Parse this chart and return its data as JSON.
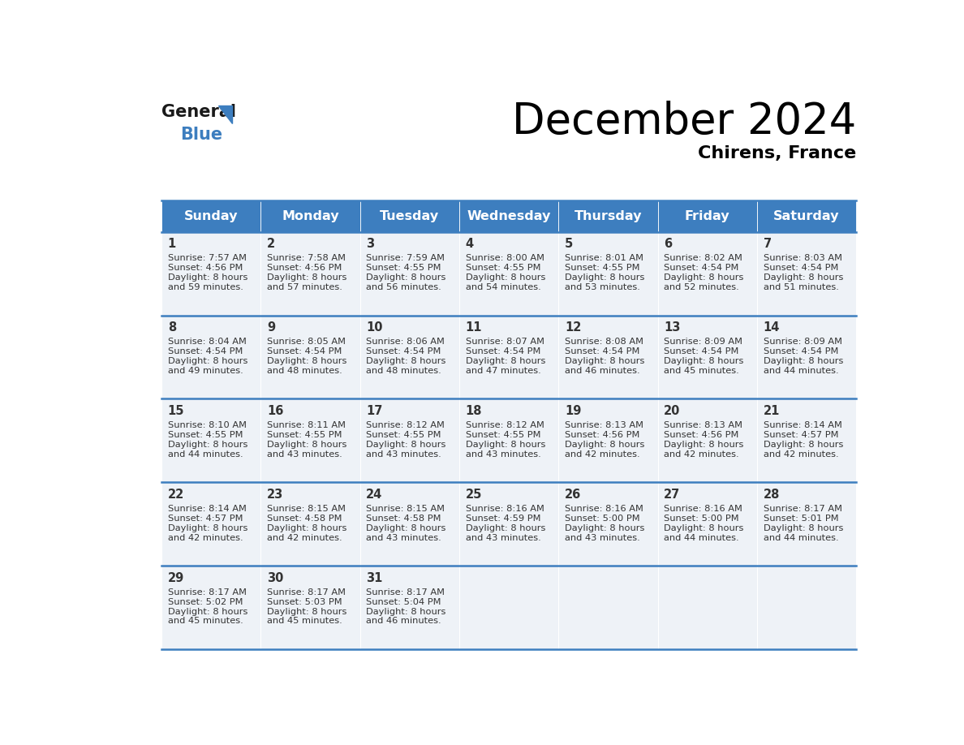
{
  "title": "December 2024",
  "subtitle": "Chirens, France",
  "header_color": "#3d7ebf",
  "header_text_color": "#ffffff",
  "cell_bg_color": "#eef2f7",
  "line_color": "#3d7ebf",
  "text_color": "#333333",
  "days_of_week": [
    "Sunday",
    "Monday",
    "Tuesday",
    "Wednesday",
    "Thursday",
    "Friday",
    "Saturday"
  ],
  "calendar_data": [
    [
      {
        "day": 1,
        "sunrise": "7:57 AM",
        "sunset": "4:56 PM",
        "daylight": "8 hours and 59 minutes."
      },
      {
        "day": 2,
        "sunrise": "7:58 AM",
        "sunset": "4:56 PM",
        "daylight": "8 hours and 57 minutes."
      },
      {
        "day": 3,
        "sunrise": "7:59 AM",
        "sunset": "4:55 PM",
        "daylight": "8 hours and 56 minutes."
      },
      {
        "day": 4,
        "sunrise": "8:00 AM",
        "sunset": "4:55 PM",
        "daylight": "8 hours and 54 minutes."
      },
      {
        "day": 5,
        "sunrise": "8:01 AM",
        "sunset": "4:55 PM",
        "daylight": "8 hours and 53 minutes."
      },
      {
        "day": 6,
        "sunrise": "8:02 AM",
        "sunset": "4:54 PM",
        "daylight": "8 hours and 52 minutes."
      },
      {
        "day": 7,
        "sunrise": "8:03 AM",
        "sunset": "4:54 PM",
        "daylight": "8 hours and 51 minutes."
      }
    ],
    [
      {
        "day": 8,
        "sunrise": "8:04 AM",
        "sunset": "4:54 PM",
        "daylight": "8 hours and 49 minutes."
      },
      {
        "day": 9,
        "sunrise": "8:05 AM",
        "sunset": "4:54 PM",
        "daylight": "8 hours and 48 minutes."
      },
      {
        "day": 10,
        "sunrise": "8:06 AM",
        "sunset": "4:54 PM",
        "daylight": "8 hours and 48 minutes."
      },
      {
        "day": 11,
        "sunrise": "8:07 AM",
        "sunset": "4:54 PM",
        "daylight": "8 hours and 47 minutes."
      },
      {
        "day": 12,
        "sunrise": "8:08 AM",
        "sunset": "4:54 PM",
        "daylight": "8 hours and 46 minutes."
      },
      {
        "day": 13,
        "sunrise": "8:09 AM",
        "sunset": "4:54 PM",
        "daylight": "8 hours and 45 minutes."
      },
      {
        "day": 14,
        "sunrise": "8:09 AM",
        "sunset": "4:54 PM",
        "daylight": "8 hours and 44 minutes."
      }
    ],
    [
      {
        "day": 15,
        "sunrise": "8:10 AM",
        "sunset": "4:55 PM",
        "daylight": "8 hours and 44 minutes."
      },
      {
        "day": 16,
        "sunrise": "8:11 AM",
        "sunset": "4:55 PM",
        "daylight": "8 hours and 43 minutes."
      },
      {
        "day": 17,
        "sunrise": "8:12 AM",
        "sunset": "4:55 PM",
        "daylight": "8 hours and 43 minutes."
      },
      {
        "day": 18,
        "sunrise": "8:12 AM",
        "sunset": "4:55 PM",
        "daylight": "8 hours and 43 minutes."
      },
      {
        "day": 19,
        "sunrise": "8:13 AM",
        "sunset": "4:56 PM",
        "daylight": "8 hours and 42 minutes."
      },
      {
        "day": 20,
        "sunrise": "8:13 AM",
        "sunset": "4:56 PM",
        "daylight": "8 hours and 42 minutes."
      },
      {
        "day": 21,
        "sunrise": "8:14 AM",
        "sunset": "4:57 PM",
        "daylight": "8 hours and 42 minutes."
      }
    ],
    [
      {
        "day": 22,
        "sunrise": "8:14 AM",
        "sunset": "4:57 PM",
        "daylight": "8 hours and 42 minutes."
      },
      {
        "day": 23,
        "sunrise": "8:15 AM",
        "sunset": "4:58 PM",
        "daylight": "8 hours and 42 minutes."
      },
      {
        "day": 24,
        "sunrise": "8:15 AM",
        "sunset": "4:58 PM",
        "daylight": "8 hours and 43 minutes."
      },
      {
        "day": 25,
        "sunrise": "8:16 AM",
        "sunset": "4:59 PM",
        "daylight": "8 hours and 43 minutes."
      },
      {
        "day": 26,
        "sunrise": "8:16 AM",
        "sunset": "5:00 PM",
        "daylight": "8 hours and 43 minutes."
      },
      {
        "day": 27,
        "sunrise": "8:16 AM",
        "sunset": "5:00 PM",
        "daylight": "8 hours and 44 minutes."
      },
      {
        "day": 28,
        "sunrise": "8:17 AM",
        "sunset": "5:01 PM",
        "daylight": "8 hours and 44 minutes."
      }
    ],
    [
      {
        "day": 29,
        "sunrise": "8:17 AM",
        "sunset": "5:02 PM",
        "daylight": "8 hours and 45 minutes."
      },
      {
        "day": 30,
        "sunrise": "8:17 AM",
        "sunset": "5:03 PM",
        "daylight": "8 hours and 45 minutes."
      },
      {
        "day": 31,
        "sunrise": "8:17 AM",
        "sunset": "5:04 PM",
        "daylight": "8 hours and 46 minutes."
      },
      null,
      null,
      null,
      null
    ]
  ],
  "logo_general_color": "#1a1a1a",
  "logo_blue_color": "#3d7ebf",
  "logo_triangle_color": "#3d7ebf"
}
